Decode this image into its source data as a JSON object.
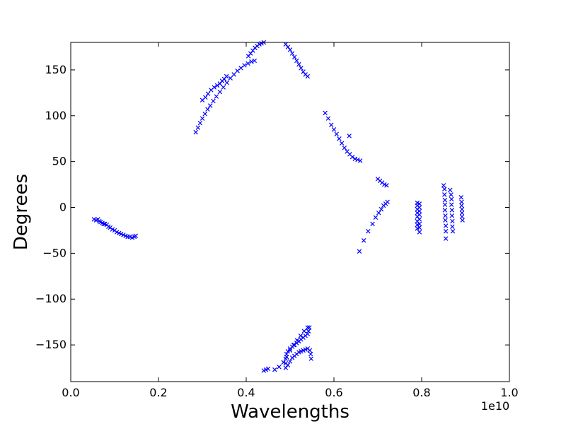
{
  "chart_data": {
    "type": "scatter",
    "title": "",
    "xlabel": "Wavelengths",
    "ylabel": "Degrees",
    "x_offset_label": "1e10",
    "xlim": [
      0.0,
      1.0
    ],
    "ylim": [
      -190,
      180
    ],
    "x_unit_multiplier": 10000000000,
    "xticks": [
      0.0,
      0.2,
      0.4,
      0.6,
      0.8,
      1.0
    ],
    "xtick_labels": [
      "0.0",
      "0.2",
      "0.4",
      "0.6",
      "0.8",
      "1.0"
    ],
    "yticks": [
      150,
      100,
      50,
      0,
      -50,
      -100,
      -150
    ],
    "ytick_labels": [
      "150",
      "100",
      "50",
      "0",
      "−50",
      "−100",
      "−150"
    ],
    "grid": false,
    "legend": "none",
    "marker": "x",
    "color": "#0000ff",
    "series": [
      {
        "points": [
          [
            0.053,
            -13
          ],
          [
            0.058,
            -14
          ],
          [
            0.062,
            -13
          ],
          [
            0.065,
            -15
          ],
          [
            0.068,
            -16
          ],
          [
            0.072,
            -17
          ],
          [
            0.075,
            -18
          ],
          [
            0.078,
            -18
          ],
          [
            0.082,
            -19
          ],
          [
            0.086,
            -21
          ],
          [
            0.09,
            -22
          ],
          [
            0.095,
            -24
          ],
          [
            0.1,
            -25
          ],
          [
            0.105,
            -27
          ],
          [
            0.11,
            -28
          ],
          [
            0.115,
            -29
          ],
          [
            0.12,
            -30
          ],
          [
            0.125,
            -31
          ],
          [
            0.13,
            -32
          ],
          [
            0.135,
            -32
          ],
          [
            0.14,
            -33
          ],
          [
            0.145,
            -32
          ],
          [
            0.148,
            -31
          ],
          [
            0.285,
            82
          ],
          [
            0.29,
            87
          ],
          [
            0.295,
            92
          ],
          [
            0.3,
            97
          ],
          [
            0.306,
            102
          ],
          [
            0.312,
            107
          ],
          [
            0.318,
            111
          ],
          [
            0.325,
            116
          ],
          [
            0.332,
            121
          ],
          [
            0.34,
            126
          ],
          [
            0.348,
            131
          ],
          [
            0.356,
            136
          ],
          [
            0.364,
            141
          ],
          [
            0.372,
            145
          ],
          [
            0.38,
            149
          ],
          [
            0.388,
            152
          ],
          [
            0.396,
            155
          ],
          [
            0.404,
            157
          ],
          [
            0.412,
            159
          ],
          [
            0.419,
            160
          ],
          [
            0.3,
            117
          ],
          [
            0.307,
            120
          ],
          [
            0.313,
            124
          ],
          [
            0.32,
            128
          ],
          [
            0.327,
            131
          ],
          [
            0.334,
            133
          ],
          [
            0.34,
            135
          ],
          [
            0.345,
            138
          ],
          [
            0.35,
            140
          ],
          [
            0.355,
            143
          ],
          [
            0.405,
            165
          ],
          [
            0.41,
            168
          ],
          [
            0.415,
            171
          ],
          [
            0.42,
            174
          ],
          [
            0.425,
            176
          ],
          [
            0.43,
            178
          ],
          [
            0.435,
            179
          ],
          [
            0.44,
            180
          ],
          [
            0.49,
            178
          ],
          [
            0.495,
            175
          ],
          [
            0.5,
            172
          ],
          [
            0.505,
            168
          ],
          [
            0.51,
            164
          ],
          [
            0.515,
            160
          ],
          [
            0.52,
            156
          ],
          [
            0.525,
            152
          ],
          [
            0.53,
            148
          ],
          [
            0.535,
            145
          ],
          [
            0.54,
            143
          ],
          [
            0.58,
            103
          ],
          [
            0.587,
            97
          ],
          [
            0.594,
            90
          ],
          [
            0.6,
            85
          ],
          [
            0.606,
            80
          ],
          [
            0.612,
            75
          ],
          [
            0.618,
            70
          ],
          [
            0.624,
            65
          ],
          [
            0.63,
            61
          ],
          [
            0.636,
            58
          ],
          [
            0.642,
            55
          ],
          [
            0.648,
            53
          ],
          [
            0.654,
            52
          ],
          [
            0.66,
            51
          ],
          [
            0.635,
            78
          ],
          [
            0.7,
            31
          ],
          [
            0.705,
            29
          ],
          [
            0.71,
            27
          ],
          [
            0.715,
            25
          ],
          [
            0.72,
            24
          ],
          [
            0.658,
            -48
          ],
          [
            0.668,
            -36
          ],
          [
            0.678,
            -26
          ],
          [
            0.688,
            -18
          ],
          [
            0.695,
            -11
          ],
          [
            0.702,
            -6
          ],
          [
            0.708,
            -2
          ],
          [
            0.713,
            2
          ],
          [
            0.718,
            4
          ],
          [
            0.722,
            6
          ],
          [
            0.79,
            5
          ],
          [
            0.79,
            2
          ],
          [
            0.79,
            -2
          ],
          [
            0.79,
            -6
          ],
          [
            0.79,
            -10
          ],
          [
            0.79,
            -15
          ],
          [
            0.79,
            -19
          ],
          [
            0.79,
            -23
          ],
          [
            0.795,
            4
          ],
          [
            0.795,
            0
          ],
          [
            0.795,
            -4
          ],
          [
            0.795,
            -8
          ],
          [
            0.795,
            -13
          ],
          [
            0.795,
            -18
          ],
          [
            0.795,
            -22
          ],
          [
            0.795,
            -27
          ],
          [
            0.85,
            24
          ],
          [
            0.852,
            20
          ],
          [
            0.852,
            14
          ],
          [
            0.853,
            8
          ],
          [
            0.853,
            3
          ],
          [
            0.853,
            -3
          ],
          [
            0.854,
            -9
          ],
          [
            0.854,
            -14
          ],
          [
            0.855,
            -20
          ],
          [
            0.855,
            -26
          ],
          [
            0.855,
            -34
          ],
          [
            0.865,
            19
          ],
          [
            0.867,
            14
          ],
          [
            0.868,
            9
          ],
          [
            0.868,
            3
          ],
          [
            0.869,
            -3
          ],
          [
            0.869,
            -9
          ],
          [
            0.87,
            -15
          ],
          [
            0.87,
            -21
          ],
          [
            0.871,
            -26
          ],
          [
            0.89,
            11
          ],
          [
            0.891,
            6
          ],
          [
            0.891,
            2
          ],
          [
            0.892,
            -2
          ],
          [
            0.892,
            -6
          ],
          [
            0.892,
            -10
          ],
          [
            0.893,
            -14
          ],
          [
            0.44,
            -178
          ],
          [
            0.445,
            -177
          ],
          [
            0.45,
            -176
          ],
          [
            0.465,
            -177
          ],
          [
            0.475,
            -174
          ],
          [
            0.485,
            -169
          ],
          [
            0.492,
            -163
          ],
          [
            0.5,
            -156
          ],
          [
            0.508,
            -150
          ],
          [
            0.516,
            -145
          ],
          [
            0.524,
            -140
          ],
          [
            0.532,
            -135
          ],
          [
            0.54,
            -131
          ],
          [
            0.49,
            -175
          ],
          [
            0.49,
            -170
          ],
          [
            0.49,
            -165
          ],
          [
            0.492,
            -160
          ],
          [
            0.495,
            -157
          ],
          [
            0.5,
            -154
          ],
          [
            0.505,
            -152
          ],
          [
            0.51,
            -150
          ],
          [
            0.515,
            -148
          ],
          [
            0.52,
            -146
          ],
          [
            0.525,
            -144
          ],
          [
            0.53,
            -142
          ],
          [
            0.535,
            -140
          ],
          [
            0.54,
            -138
          ],
          [
            0.542,
            -135
          ],
          [
            0.544,
            -131
          ],
          [
            0.495,
            -172
          ],
          [
            0.5,
            -168
          ],
          [
            0.505,
            -164
          ],
          [
            0.51,
            -162
          ],
          [
            0.515,
            -160
          ],
          [
            0.52,
            -158
          ],
          [
            0.525,
            -157
          ],
          [
            0.53,
            -156
          ],
          [
            0.535,
            -155
          ],
          [
            0.54,
            -154
          ],
          [
            0.545,
            -156
          ],
          [
            0.547,
            -160
          ],
          [
            0.548,
            -165
          ]
        ]
      }
    ]
  }
}
